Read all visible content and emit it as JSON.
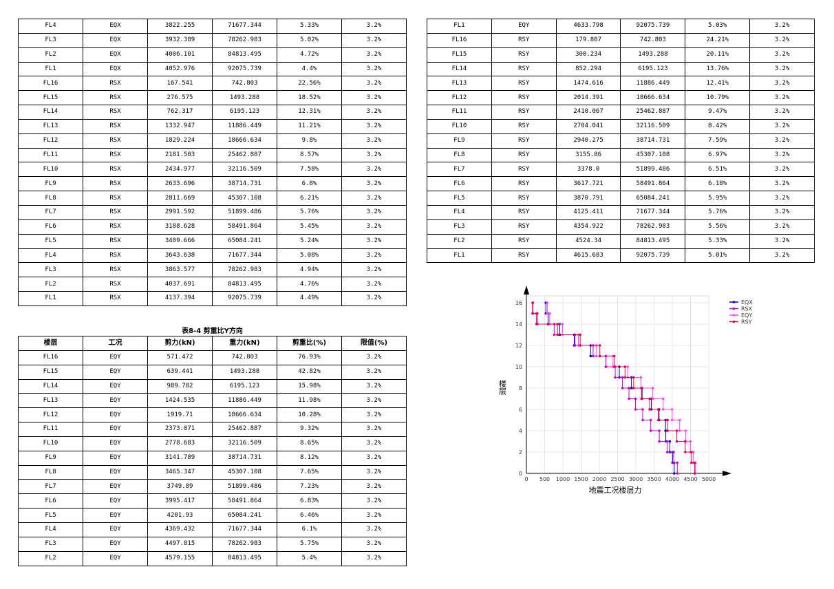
{
  "table_a": {
    "rows": [
      [
        "FL4",
        "EQX",
        "3822.255",
        "71677.344",
        "5.33%",
        "3.2%"
      ],
      [
        "FL3",
        "EQX",
        "3932.389",
        "78262.983",
        "5.02%",
        "3.2%"
      ],
      [
        "FL2",
        "EQX",
        "4006.101",
        "84813.495",
        "4.72%",
        "3.2%"
      ],
      [
        "FL1",
        "EQX",
        "4052.976",
        "92075.739",
        "4.4%",
        "3.2%"
      ],
      [
        "FL16",
        "RSX",
        "167.541",
        "742.803",
        "22.56%",
        "3.2%"
      ],
      [
        "FL15",
        "RSX",
        "276.575",
        "1493.288",
        "18.52%",
        "3.2%"
      ],
      [
        "FL14",
        "RSX",
        "762.317",
        "6195.123",
        "12.31%",
        "3.2%"
      ],
      [
        "FL13",
        "RSX",
        "1332.947",
        "11886.449",
        "11.21%",
        "3.2%"
      ],
      [
        "FL12",
        "RSX",
        "1829.224",
        "18666.634",
        "9.8%",
        "3.2%"
      ],
      [
        "FL11",
        "RSX",
        "2181.503",
        "25462.887",
        "8.57%",
        "3.2%"
      ],
      [
        "FL10",
        "RSX",
        "2434.977",
        "32116.509",
        "7.58%",
        "3.2%"
      ],
      [
        "FL9",
        "RSX",
        "2633.696",
        "38714.731",
        "6.8%",
        "3.2%"
      ],
      [
        "FL8",
        "RSX",
        "2811.669",
        "45307.108",
        "6.21%",
        "3.2%"
      ],
      [
        "FL7",
        "RSX",
        "2991.592",
        "51899.486",
        "5.76%",
        "3.2%"
      ],
      [
        "FL6",
        "RSX",
        "3188.628",
        "58491.864",
        "5.45%",
        "3.2%"
      ],
      [
        "FL5",
        "RSX",
        "3409.666",
        "65084.241",
        "5.24%",
        "3.2%"
      ],
      [
        "FL4",
        "RSX",
        "3643.638",
        "71677.344",
        "5.08%",
        "3.2%"
      ],
      [
        "FL3",
        "RSX",
        "3863.577",
        "78262.983",
        "4.94%",
        "3.2%"
      ],
      [
        "FL2",
        "RSX",
        "4037.691",
        "84813.495",
        "4.76%",
        "3.2%"
      ],
      [
        "FL1",
        "RSX",
        "4137.394",
        "92075.739",
        "4.49%",
        "3.2%"
      ]
    ]
  },
  "table_b": {
    "rows": [
      [
        "FL1",
        "EQY",
        "4633.798",
        "92075.739",
        "5.03%",
        "3.2%"
      ],
      [
        "FL16",
        "RSY",
        "179.807",
        "742.803",
        "24.21%",
        "3.2%"
      ],
      [
        "FL15",
        "RSY",
        "300.234",
        "1493.288",
        "20.11%",
        "3.2%"
      ],
      [
        "FL14",
        "RSY",
        "852.294",
        "6195.123",
        "13.76%",
        "3.2%"
      ],
      [
        "FL13",
        "RSY",
        "1474.616",
        "11886.449",
        "12.41%",
        "3.2%"
      ],
      [
        "FL12",
        "RSY",
        "2014.391",
        "18666.634",
        "10.79%",
        "3.2%"
      ],
      [
        "FL11",
        "RSY",
        "2410.067",
        "25462.887",
        "9.47%",
        "3.2%"
      ],
      [
        "FL10",
        "RSY",
        "2704.041",
        "32116.509",
        "8.42%",
        "3.2%"
      ],
      [
        "FL9",
        "RSY",
        "2940.275",
        "38714.731",
        "7.59%",
        "3.2%"
      ],
      [
        "FL8",
        "RSY",
        "3155.86",
        "45307.108",
        "6.97%",
        "3.2%"
      ],
      [
        "FL7",
        "RSY",
        "3378.0",
        "51899.486",
        "6.51%",
        "3.2%"
      ],
      [
        "FL6",
        "RSY",
        "3617.721",
        "58491.864",
        "6.18%",
        "3.2%"
      ],
      [
        "FL5",
        "RSY",
        "3870.791",
        "65084.241",
        "5.95%",
        "3.2%"
      ],
      [
        "FL4",
        "RSY",
        "4125.411",
        "71677.344",
        "5.76%",
        "3.2%"
      ],
      [
        "FL3",
        "RSY",
        "4354.922",
        "78262.983",
        "5.56%",
        "3.2%"
      ],
      [
        "FL2",
        "RSY",
        "4524.34",
        "84813.495",
        "5.33%",
        "3.2%"
      ],
      [
        "FL1",
        "RSY",
        "4615.683",
        "92075.739",
        "5.01%",
        "3.2%"
      ]
    ]
  },
  "table_c": {
    "caption": "表8-4 剪重比Y方向",
    "headers": [
      "楼层",
      "工况",
      "剪力(kN)",
      "重力(kN)",
      "剪重比(%)",
      "限值(%)"
    ],
    "rows": [
      [
        "FL16",
        "EQY",
        "571.472",
        "742.803",
        "76.93%",
        "3.2%"
      ],
      [
        "FL15",
        "EQY",
        "639.441",
        "1493.288",
        "42.82%",
        "3.2%"
      ],
      [
        "FL14",
        "EQY",
        "989.782",
        "6195.123",
        "15.98%",
        "3.2%"
      ],
      [
        "FL13",
        "EQY",
        "1424.535",
        "11886.449",
        "11.98%",
        "3.2%"
      ],
      [
        "FL12",
        "EQY",
        "1919.71",
        "18666.634",
        "10.28%",
        "3.2%"
      ],
      [
        "FL11",
        "EQY",
        "2373.071",
        "25462.887",
        "9.32%",
        "3.2%"
      ],
      [
        "FL10",
        "EQY",
        "2778.683",
        "32116.509",
        "8.65%",
        "3.2%"
      ],
      [
        "FL9",
        "EQY",
        "3141.789",
        "38714.731",
        "8.12%",
        "3.2%"
      ],
      [
        "FL8",
        "EQY",
        "3465.347",
        "45307.108",
        "7.65%",
        "3.2%"
      ],
      [
        "FL7",
        "EQY",
        "3749.89",
        "51899.486",
        "7.23%",
        "3.2%"
      ],
      [
        "FL6",
        "EQY",
        "3995.417",
        "58491.864",
        "6.83%",
        "3.2%"
      ],
      [
        "FL5",
        "EQY",
        "4201.93",
        "65084.241",
        "6.46%",
        "3.2%"
      ],
      [
        "FL4",
        "EQY",
        "4369.432",
        "71677.344",
        "6.1%",
        "3.2%"
      ],
      [
        "FL3",
        "EQY",
        "4497.815",
        "78262.983",
        "5.75%",
        "3.2%"
      ],
      [
        "FL2",
        "EQY",
        "4579.155",
        "84813.495",
        "5.4%",
        "3.2%"
      ]
    ]
  },
  "chart_data": {
    "type": "line",
    "xlabel": "地震工况楼层力",
    "ylabel": "楼层",
    "xlim": [
      0,
      5000
    ],
    "ylim": [
      0,
      16
    ],
    "xticks": [
      0,
      500,
      1000,
      1500,
      2000,
      2500,
      3000,
      3500,
      4000,
      4500,
      5000
    ],
    "yticks": [
      0,
      2,
      4,
      6,
      8,
      10,
      12,
      14,
      16
    ],
    "grid": true,
    "legend_position": "top-right",
    "series": [
      {
        "name": "EQX",
        "color": "#0000cc",
        "values": [
          {
            "floor": 16,
            "shear": 532.9
          },
          {
            "floor": 15,
            "shear": 594.1
          },
          {
            "floor": 14,
            "shear": 913.3
          },
          {
            "floor": 13,
            "shear": 1310.6
          },
          {
            "floor": 12,
            "shear": 1760.4
          },
          {
            "floor": 11,
            "shear": 2178.9
          },
          {
            "floor": 10,
            "shear": 2548.1
          },
          {
            "floor": 9,
            "shear": 2879.3
          },
          {
            "floor": 8,
            "shear": 3172.4
          },
          {
            "floor": 7,
            "shear": 3424.7
          },
          {
            "floor": 6,
            "shear": 3637.8
          },
          {
            "floor": 5,
            "shear": 3814.3
          },
          {
            "floor": 4,
            "shear": 3822.255
          },
          {
            "floor": 3,
            "shear": 3932.389
          },
          {
            "floor": 2,
            "shear": 4006.101
          },
          {
            "floor": 1,
            "shear": 4052.976
          }
        ]
      },
      {
        "name": "RSX",
        "color": "#cc00cc",
        "values": [
          {
            "floor": 16,
            "shear": 167.541
          },
          {
            "floor": 15,
            "shear": 276.575
          },
          {
            "floor": 14,
            "shear": 762.317
          },
          {
            "floor": 13,
            "shear": 1332.947
          },
          {
            "floor": 12,
            "shear": 1829.224
          },
          {
            "floor": 11,
            "shear": 2181.503
          },
          {
            "floor": 10,
            "shear": 2434.977
          },
          {
            "floor": 9,
            "shear": 2633.696
          },
          {
            "floor": 8,
            "shear": 2811.669
          },
          {
            "floor": 7,
            "shear": 2991.592
          },
          {
            "floor": 6,
            "shear": 3188.628
          },
          {
            "floor": 5,
            "shear": 3409.666
          },
          {
            "floor": 4,
            "shear": 3643.638
          },
          {
            "floor": 3,
            "shear": 3863.577
          },
          {
            "floor": 2,
            "shear": 4037.691
          },
          {
            "floor": 1,
            "shear": 4137.394
          }
        ]
      },
      {
        "name": "EQY",
        "color": "#ff44ff",
        "values": [
          {
            "floor": 16,
            "shear": 571.472
          },
          {
            "floor": 15,
            "shear": 639.441
          },
          {
            "floor": 14,
            "shear": 989.782
          },
          {
            "floor": 13,
            "shear": 1424.535
          },
          {
            "floor": 12,
            "shear": 1919.71
          },
          {
            "floor": 11,
            "shear": 2373.071
          },
          {
            "floor": 10,
            "shear": 2778.683
          },
          {
            "floor": 9,
            "shear": 3141.789
          },
          {
            "floor": 8,
            "shear": 3465.347
          },
          {
            "floor": 7,
            "shear": 3749.89
          },
          {
            "floor": 6,
            "shear": 3995.417
          },
          {
            "floor": 5,
            "shear": 4201.93
          },
          {
            "floor": 4,
            "shear": 4369.432
          },
          {
            "floor": 3,
            "shear": 4497.815
          },
          {
            "floor": 2,
            "shear": 4579.155
          },
          {
            "floor": 1,
            "shear": 4633.798
          }
        ]
      },
      {
        "name": "RSY",
        "color": "#e8004c",
        "values": [
          {
            "floor": 16,
            "shear": 179.807
          },
          {
            "floor": 15,
            "shear": 300.234
          },
          {
            "floor": 14,
            "shear": 852.294
          },
          {
            "floor": 13,
            "shear": 1474.616
          },
          {
            "floor": 12,
            "shear": 2014.391
          },
          {
            "floor": 11,
            "shear": 2410.067
          },
          {
            "floor": 10,
            "shear": 2704.041
          },
          {
            "floor": 9,
            "shear": 2940.275
          },
          {
            "floor": 8,
            "shear": 3155.86
          },
          {
            "floor": 7,
            "shear": 3378.0
          },
          {
            "floor": 6,
            "shear": 3617.721
          },
          {
            "floor": 5,
            "shear": 3870.791
          },
          {
            "floor": 4,
            "shear": 4125.411
          },
          {
            "floor": 3,
            "shear": 4354.922
          },
          {
            "floor": 2,
            "shear": 4524.34
          },
          {
            "floor": 1,
            "shear": 4615.683
          }
        ]
      }
    ]
  }
}
